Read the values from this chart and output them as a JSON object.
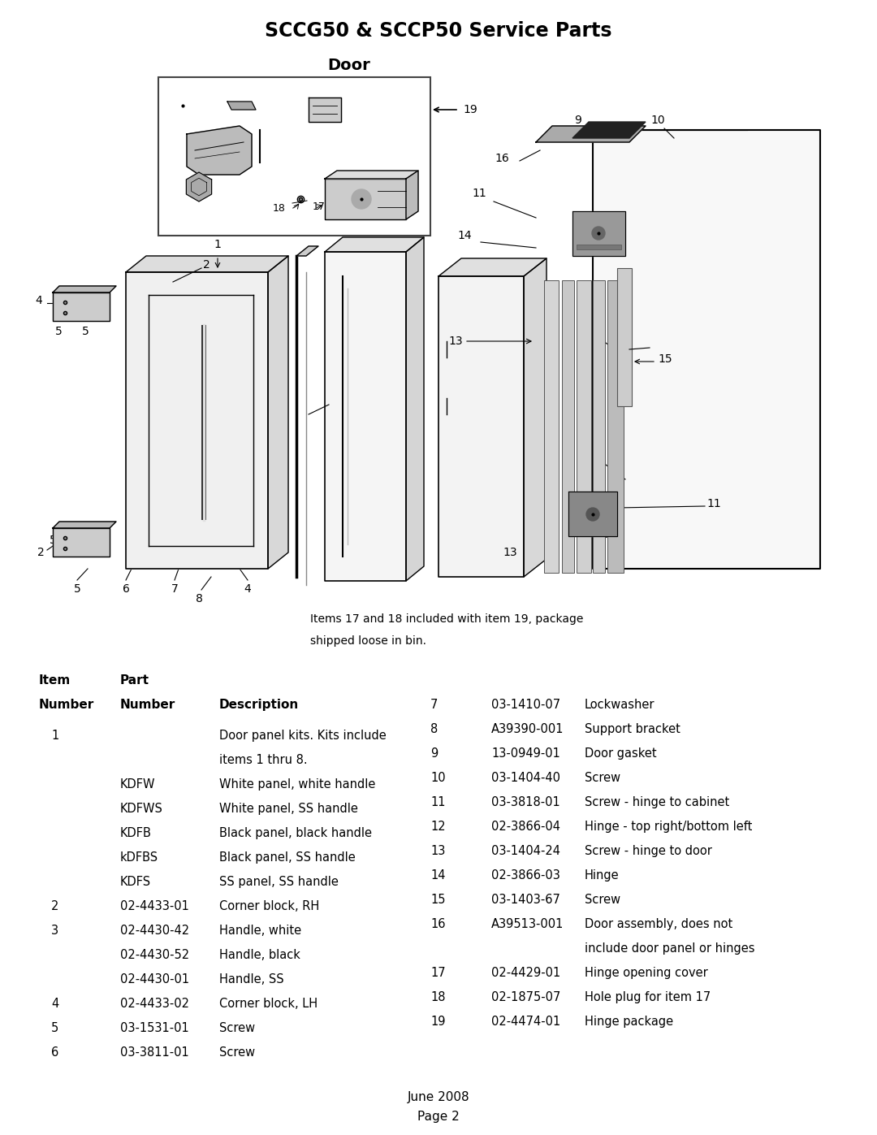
{
  "title": "SCCG50 & SCCP50 Service Parts",
  "subtitle": "Door",
  "note": "Items 17 and 18 included with item 19, package\nshipped loose in bin.",
  "footer_line1": "June 2008",
  "footer_line2": "Page 2",
  "table_left": [
    [
      "1",
      "",
      "Door panel kits. Kits include",
      "items 1 thru 8."
    ],
    [
      "",
      "KDFW",
      "White panel, white handle",
      ""
    ],
    [
      "",
      "KDFWS",
      "White panel, SS handle",
      ""
    ],
    [
      "",
      "KDFB",
      "Black panel, black handle",
      ""
    ],
    [
      "",
      "kDFBS",
      "Black panel, SS handle",
      ""
    ],
    [
      "",
      "KDFS",
      "SS panel, SS handle",
      ""
    ],
    [
      "2",
      "02-4433-01",
      "Corner block, RH",
      ""
    ],
    [
      "3",
      "02-4430-42",
      "Handle, white",
      ""
    ],
    [
      "",
      "02-4430-52",
      "Handle, black",
      ""
    ],
    [
      "",
      "02-4430-01",
      "Handle, SS",
      ""
    ],
    [
      "4",
      "02-4433-02",
      "Corner block, LH",
      ""
    ],
    [
      "5",
      "03-1531-01",
      "Screw",
      ""
    ],
    [
      "6",
      "03-3811-01",
      "Screw",
      ""
    ]
  ],
  "table_right": [
    [
      "7",
      "03-1410-07",
      "Lockwasher",
      ""
    ],
    [
      "8",
      "A39390-001",
      "Support bracket",
      ""
    ],
    [
      "9",
      "13-0949-01",
      "Door gasket",
      ""
    ],
    [
      "10",
      "03-1404-40",
      "Screw",
      ""
    ],
    [
      "11",
      "03-3818-01",
      "Screw - hinge to cabinet",
      ""
    ],
    [
      "12",
      "02-3866-04",
      "Hinge - top right/bottom left",
      ""
    ],
    [
      "13",
      "03-1404-24",
      "Screw - hinge to door",
      ""
    ],
    [
      "14",
      "02-3866-03",
      "Hinge",
      ""
    ],
    [
      "15",
      "03-1403-67",
      "Screw",
      ""
    ],
    [
      "16",
      "A39513-001",
      "Door assembly, does not",
      "include door panel or hinges"
    ],
    [
      "17",
      "02-4429-01",
      "Hinge opening cover",
      ""
    ],
    [
      "18",
      "02-1875-07",
      "Hole plug for item 17",
      ""
    ],
    [
      "19",
      "02-4474-01",
      "Hinge package",
      ""
    ]
  ],
  "bg_color": "#ffffff",
  "text_color": "#000000"
}
